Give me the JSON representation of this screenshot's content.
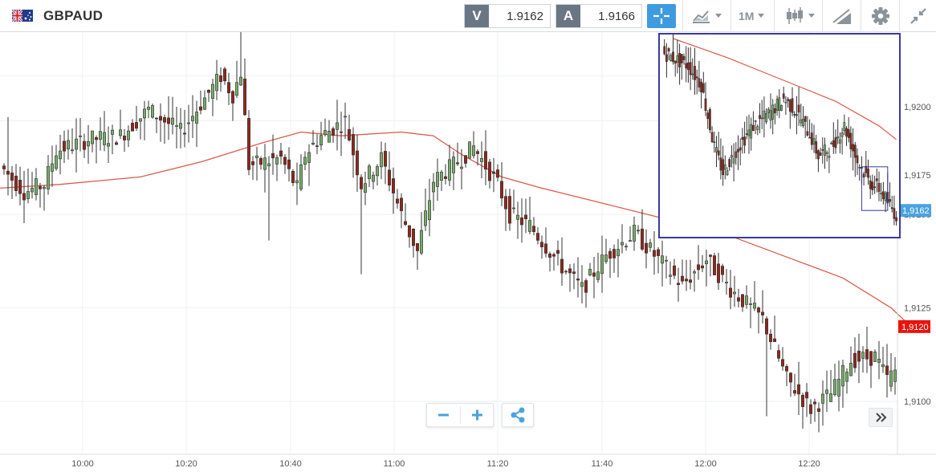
{
  "toolbar": {
    "symbol": "GBPAUD",
    "flag_icon": "gb-au-flag-icon",
    "bid": {
      "tag": "V",
      "value": "1.9162"
    },
    "ask": {
      "tag": "A",
      "value": "1.9166"
    },
    "timeframe": "1M",
    "buttons": [
      "crosshair-icon",
      "chart-type-icon",
      "candles-icon",
      "drawing-tools-icon",
      "gear-icon",
      "collapse-icon"
    ]
  },
  "colors": {
    "up_candle": "#7aab6e",
    "down_candle": "#8b2a1f",
    "moving_average": "#dc5a4c",
    "last_price_badge": "#e8140b",
    "minimap_badge": "#4aa3df",
    "minimap_frame": "#3a3aa0",
    "accent": "#3f9be0"
  },
  "chart_data": {
    "type": "candlestick",
    "series": [
      {
        "name": "",
        "kind": "candlestick",
        "candle_count": 148
      },
      {
        "name": "",
        "kind": "moving-average-line"
      }
    ],
    "x_ticks": [
      "10:00",
      "10:20",
      "10:40",
      "11:00",
      "11:20",
      "11:40",
      "12:00",
      "12:20"
    ],
    "y_ticks": [
      "1,9100",
      "1,9125",
      "1,9150"
    ],
    "ylim": [
      1.9094,
      1.9197
    ],
    "last_price": "1,9120",
    "grid": true,
    "ma_points": [
      [
        0,
        1.9157
      ],
      [
        15,
        1.9158
      ],
      [
        35,
        1.916
      ],
      [
        50,
        1.9164
      ],
      [
        65,
        1.9169
      ],
      [
        75,
        1.9172
      ],
      [
        85,
        1.9171
      ],
      [
        100,
        1.9172
      ],
      [
        108,
        1.9171
      ],
      [
        115,
        1.9166
      ],
      [
        125,
        1.916
      ],
      [
        135,
        1.9157
      ],
      [
        150,
        1.9153
      ],
      [
        165,
        1.9149
      ],
      [
        175,
        1.9147
      ],
      [
        180,
        1.9145
      ],
      [
        195,
        1.9139
      ],
      [
        210,
        1.9133
      ],
      [
        222,
        1.9125
      ],
      [
        227,
        1.912
      ]
    ],
    "segments": [
      [
        0,
        1.9163
      ],
      [
        6,
        1.9156
      ],
      [
        11,
        1.9158
      ],
      [
        14,
        1.9167
      ],
      [
        22,
        1.917
      ],
      [
        30,
        1.9171
      ],
      [
        37,
        1.9178
      ],
      [
        45,
        1.9172
      ],
      [
        55,
        1.9187
      ],
      [
        58,
        1.9182
      ],
      [
        60,
        1.9188
      ],
      [
        62,
        1.9163
      ],
      [
        70,
        1.9165
      ],
      [
        74,
        1.9157
      ],
      [
        76,
        1.9166
      ],
      [
        80,
        1.9171
      ],
      [
        86,
        1.9175
      ],
      [
        90,
        1.9158
      ],
      [
        95,
        1.9165
      ],
      [
        100,
        1.915
      ],
      [
        104,
        1.914
      ],
      [
        108,
        1.9159
      ],
      [
        114,
        1.9164
      ],
      [
        118,
        1.9168
      ],
      [
        124,
        1.9158
      ],
      [
        127,
        1.915
      ],
      [
        132,
        1.9147
      ],
      [
        140,
        1.9136
      ],
      [
        145,
        1.913
      ],
      [
        151,
        1.9139
      ],
      [
        158,
        1.9145
      ],
      [
        164,
        1.9138
      ],
      [
        170,
        1.9131
      ],
      [
        176,
        1.9138
      ],
      [
        182,
        1.913
      ],
      [
        190,
        1.9122
      ],
      [
        196,
        1.9106
      ],
      [
        202,
        1.9098
      ],
      [
        207,
        1.9102
      ],
      [
        212,
        1.9111
      ],
      [
        218,
        1.9112
      ],
      [
        221,
        1.9106
      ],
      [
        227,
        1.9112
      ]
    ],
    "wicks": [
      [
        2,
        1.9176
      ],
      [
        18,
        1.9173
      ],
      [
        60,
        1.9204
      ],
      [
        34,
        1.9179
      ],
      [
        67,
        1.9143
      ],
      [
        90,
        1.9134
      ],
      [
        191,
        1.9096
      ]
    ],
    "minimap": {
      "y_ticks": [
        "1,9200",
        "1,9175"
      ],
      "last_price": "1,9162",
      "ylim": [
        1.9155,
        1.9225
      ],
      "segments": [
        [
          0,
          1.922
        ],
        [
          12,
          1.9215
        ],
        [
          18,
          1.9208
        ],
        [
          24,
          1.9185
        ],
        [
          28,
          1.9176
        ],
        [
          34,
          1.9184
        ],
        [
          42,
          1.9193
        ],
        [
          50,
          1.9198
        ],
        [
          56,
          1.9203
        ],
        [
          62,
          1.9198
        ],
        [
          68,
          1.919
        ],
        [
          72,
          1.9182
        ],
        [
          78,
          1.9185
        ],
        [
          84,
          1.9193
        ],
        [
          90,
          1.918
        ],
        [
          96,
          1.9172
        ],
        [
          100,
          1.917
        ],
        [
          104,
          1.9165
        ],
        [
          108,
          1.916
        ]
      ],
      "ma": [
        [
          5,
          1.9225
        ],
        [
          30,
          1.9218
        ],
        [
          55,
          1.921
        ],
        [
          80,
          1.9202
        ],
        [
          100,
          1.9193
        ],
        [
          108,
          1.9188
        ]
      ],
      "selection": {
        "from": 92,
        "to": 104
      }
    }
  }
}
